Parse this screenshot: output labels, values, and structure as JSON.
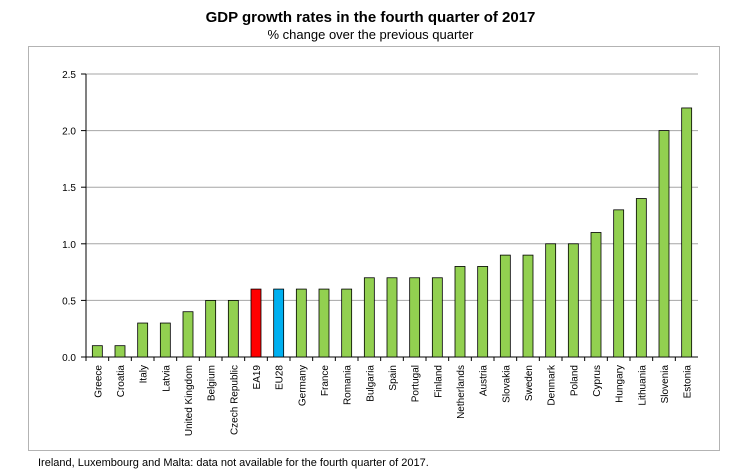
{
  "chart_data": {
    "type": "bar",
    "title": "GDP growth rates in the fourth quarter of 2017",
    "subtitle": "% change over the previous quarter",
    "categories": [
      "Greece",
      "Croatia",
      "Italy",
      "Latvia",
      "United Kingdom",
      "Belgium",
      "Czech Republic",
      "EA19",
      "EU28",
      "Germany",
      "France",
      "Romania",
      "Bulgaria",
      "Spain",
      "Portugal",
      "Finland",
      "Netherlands",
      "Austria",
      "Slovakia",
      "Sweden",
      "Denmark",
      "Poland",
      "Cyprus",
      "Hungary",
      "Lithuania",
      "Slovenia",
      "Estonia"
    ],
    "values": [
      0.1,
      0.1,
      0.3,
      0.3,
      0.4,
      0.5,
      0.5,
      0.6,
      0.6,
      0.6,
      0.6,
      0.6,
      0.7,
      0.7,
      0.7,
      0.7,
      0.8,
      0.8,
      0.9,
      0.9,
      1.0,
      1.0,
      1.1,
      1.3,
      1.4,
      2.0,
      2.2
    ],
    "colors": {
      "default": "#92d050",
      "EA19": "#ff0000",
      "EU28": "#00b0f0",
      "outline": "#000000",
      "grid": "#a6a6a6"
    },
    "ylim": [
      0,
      2.5
    ],
    "yticks": [
      "0.0",
      "0.5",
      "1.0",
      "1.5",
      "2.0",
      "2.5"
    ],
    "grid": true,
    "xlabel": "",
    "ylabel": ""
  },
  "footnote": "Ireland, Luxembourg and Malta: data not available for the fourth quarter of 2017."
}
